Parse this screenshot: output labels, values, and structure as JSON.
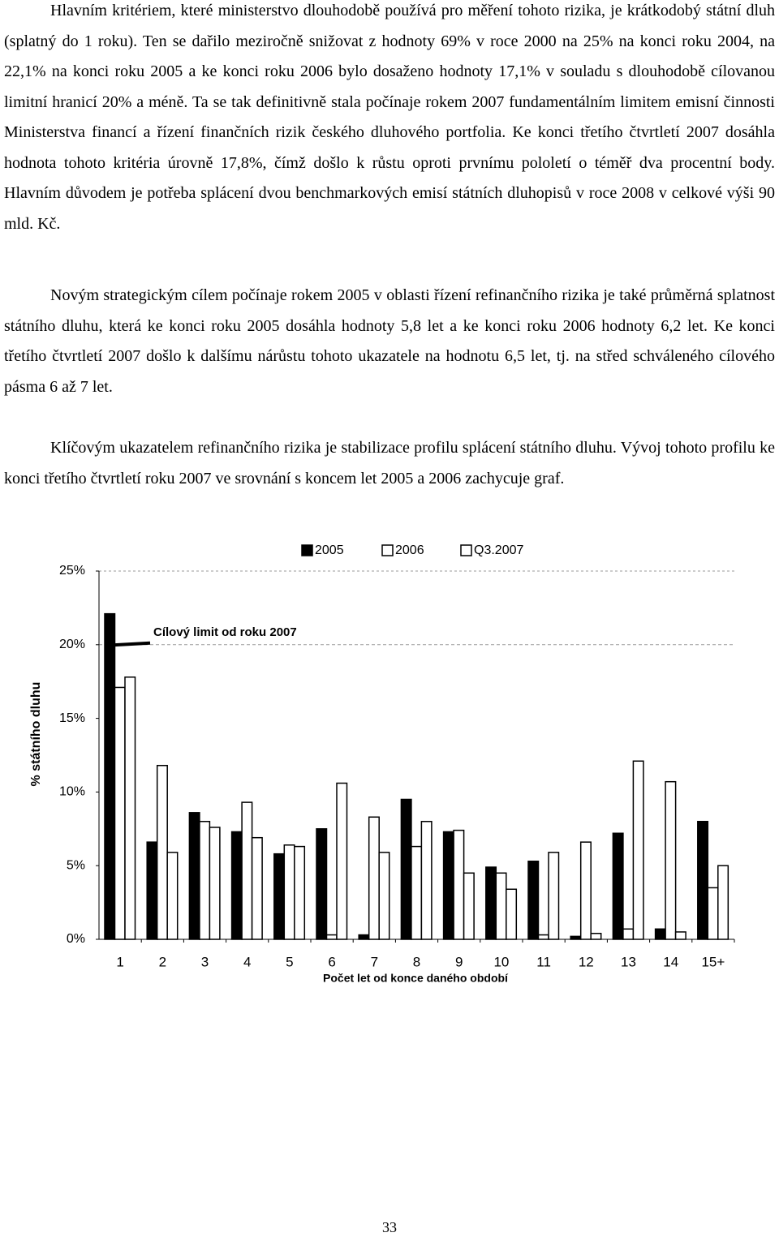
{
  "paragraphs": [
    "Hlavním kritériem, které ministerstvo dlouhodobě používá pro měření tohoto rizika, je krátkodobý státní dluh (splatný do 1 roku). Ten se dařilo meziročně snižovat z hodnoty 69% v roce 2000 na 25% na konci roku 2004, na 22,1% na konci roku 2005 a ke konci roku 2006 bylo dosaženo hodnoty 17,1% v souladu s dlouhodobě cílovanou limitní hranicí 20% a méně. Ta se tak definitivně stala počínaje rokem 2007 fundamentálním limitem emisní činnosti Ministerstva financí a řízení finančních rizik českého dluhového portfolia. Ke konci třetího čtvrtletí 2007 dosáhla hodnota tohoto kritéria úrovně 17,8%, čímž došlo k růstu oproti prvnímu pololetí o téměř dva procentní body. Hlavním důvodem je potřeba splácení dvou benchmarkových emisí státních dluhopisů v roce 2008 v celkové výši 90 mld. Kč.",
    "Novým strategickým cílem počínaje rokem 2005 v oblasti řízení refinančního rizika je také průměrná splatnost státního dluhu, která ke konci roku 2005 dosáhla hodnoty 5,8 let a ke konci roku 2006 hodnoty 6,2 let. Ke konci třetího čtvrtletí 2007 došlo k dalšímu nárůstu tohoto ukazatele na hodnotu 6,5 let, tj. na střed schváleného cílového pásma 6 až 7 let.",
    "Klíčovým ukazatelem refinančního rizika je stabilizace profilu splácení státního dluhu. Vývoj tohoto profilu ke konci třetího čtvrtletí roku 2007 ve srovnání s koncem let 2005 a 2006 zachycuje graf."
  ],
  "chart_data": {
    "type": "bar",
    "x_label": "Počet let od konce daného období",
    "y_label": "% státního dluhu",
    "categories": [
      "1",
      "2",
      "3",
      "4",
      "5",
      "6",
      "7",
      "8",
      "9",
      "10",
      "11",
      "12",
      "13",
      "14",
      "15+"
    ],
    "series": [
      {
        "name": "2005",
        "color": "#000000",
        "values": [
          22.1,
          6.6,
          8.6,
          7.3,
          5.8,
          7.5,
          0.3,
          9.5,
          7.3,
          4.9,
          5.3,
          0.2,
          7.2,
          0.7,
          8.0
        ]
      },
      {
        "name": "2006",
        "color": "#ffffff",
        "values": [
          17.1,
          11.8,
          8.0,
          9.3,
          6.4,
          0.3,
          8.3,
          6.3,
          7.4,
          4.5,
          0.3,
          6.6,
          0.7,
          10.7,
          3.5
        ]
      },
      {
        "name": "Q3.2007",
        "color": "#ffffff",
        "values": [
          17.8,
          5.9,
          7.6,
          6.9,
          6.3,
          10.6,
          5.9,
          8.0,
          4.5,
          3.4,
          5.9,
          0.4,
          12.1,
          0.5,
          5.0
        ]
      }
    ],
    "ylim": [
      0,
      25
    ],
    "yticks": [
      {
        "value": 0,
        "label": "0%"
      },
      {
        "value": 5,
        "label": "5%"
      },
      {
        "value": 10,
        "label": "10%"
      },
      {
        "value": 15,
        "label": "15%"
      },
      {
        "value": 20,
        "label": "20%"
      },
      {
        "value": 25,
        "label": "25%"
      }
    ],
    "target": {
      "label": "Cílový limit od roku 2007",
      "value": 20
    }
  },
  "page_number": "33"
}
